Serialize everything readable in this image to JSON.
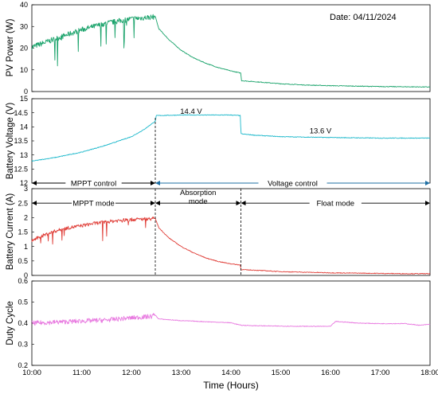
{
  "chart_data": {
    "type": "line",
    "date_label": "Date: 04/11/2024",
    "x_axis": {
      "label": "Time (Hours)",
      "ticks": [
        "10:00",
        "11:00",
        "12:00",
        "13:00",
        "14:00",
        "15:00",
        "16:00",
        "17:00",
        "18:00"
      ],
      "range_hours": [
        10,
        18
      ]
    },
    "panels": [
      {
        "id": "pv-power",
        "ylabel": "PV Power (W)",
        "ylim": [
          0,
          40
        ],
        "yticks": [
          "0",
          "10",
          "20",
          "30",
          "40"
        ],
        "color": "#1aa36b",
        "grid": false,
        "series": {
          "t": [
            10.0,
            10.25,
            10.5,
            10.75,
            11.0,
            11.25,
            11.5,
            11.75,
            12.0,
            12.25,
            12.48,
            12.55,
            12.75,
            13.0,
            13.25,
            13.5,
            13.75,
            14.0,
            14.2,
            14.21,
            14.5,
            15.0,
            15.5,
            16.0,
            16.5,
            17.0,
            17.5,
            18.0
          ],
          "v": [
            20.5,
            22.5,
            24.5,
            26.5,
            28.5,
            30.0,
            31.5,
            32.5,
            33.5,
            34.0,
            34.5,
            29.0,
            24.0,
            19.0,
            15.5,
            13.0,
            11.0,
            9.5,
            8.5,
            5.0,
            4.5,
            3.6,
            3.0,
            2.7,
            2.5,
            2.3,
            2.2,
            2.1
          ]
        },
        "noise_until": 12.47
      },
      {
        "id": "battery-voltage",
        "ylabel": "Battery Voltage (V)",
        "ylim": [
          12,
          15
        ],
        "yticks": [
          "12",
          "12.5",
          "13",
          "13.5",
          "14",
          "14.5",
          "15"
        ],
        "color": "#1fb9cc",
        "grid": false,
        "series": {
          "t": [
            10.0,
            10.5,
            11.0,
            11.5,
            12.0,
            12.25,
            12.48,
            12.5,
            13.0,
            13.5,
            14.0,
            14.19,
            14.2,
            14.5,
            15.0,
            16.0,
            17.0,
            18.0
          ],
          "v": [
            12.78,
            12.92,
            13.1,
            13.35,
            13.65,
            13.9,
            14.2,
            14.4,
            14.42,
            14.42,
            14.42,
            14.4,
            13.75,
            13.7,
            13.65,
            13.62,
            13.6,
            13.6
          ]
        },
        "annotations": [
          {
            "text": "14.4 V",
            "t": 13.2,
            "v": 14.55
          },
          {
            "text": "13.6 V",
            "t": 15.8,
            "v": 13.85
          }
        ],
        "regions": [
          {
            "label": "MPPT control",
            "from": 10.0,
            "to": 12.48
          },
          {
            "label": "Voltage control",
            "from": 12.48,
            "to": 18.0
          }
        ]
      },
      {
        "id": "battery-current",
        "ylabel": "Battery Current (A)",
        "ylim": [
          0,
          3
        ],
        "yticks": [
          "0",
          "0.5",
          "1",
          "1.5",
          "2",
          "2.5",
          "3"
        ],
        "color": "#e0403a",
        "grid": false,
        "series": {
          "t": [
            10.0,
            10.25,
            10.5,
            10.75,
            11.0,
            11.25,
            11.5,
            11.75,
            12.0,
            12.25,
            12.48,
            12.55,
            12.75,
            13.0,
            13.25,
            13.5,
            13.75,
            14.0,
            14.19,
            14.2,
            14.5,
            15.0,
            15.5,
            16.0,
            16.5,
            17.0,
            17.5,
            18.0
          ],
          "v": [
            1.2,
            1.4,
            1.55,
            1.65,
            1.72,
            1.8,
            1.85,
            1.9,
            1.93,
            1.95,
            1.97,
            1.65,
            1.3,
            1.0,
            0.78,
            0.6,
            0.48,
            0.4,
            0.36,
            0.2,
            0.18,
            0.13,
            0.11,
            0.09,
            0.08,
            0.07,
            0.06,
            0.06
          ]
        },
        "noise_until": 12.47,
        "regions": [
          {
            "label": "MPPT mode",
            "from": 10.0,
            "to": 12.48
          },
          {
            "label": "Absorption mode",
            "label_lines": [
              "Absorption",
              "mode"
            ],
            "from": 12.48,
            "to": 14.2
          },
          {
            "label": "Float  mode",
            "from": 14.2,
            "to": 18.0
          }
        ]
      },
      {
        "id": "duty-cycle",
        "ylabel": "Duty Cycle",
        "ylim": [
          0.2,
          0.6
        ],
        "yticks": [
          "0.2",
          "0.3",
          "0.4",
          "0.5",
          "0.6"
        ],
        "color": "#e87ae0",
        "grid": false,
        "series": {
          "t": [
            10.0,
            10.5,
            11.0,
            11.5,
            12.0,
            12.4,
            12.47,
            12.55,
            13.0,
            13.5,
            14.0,
            14.2,
            14.5,
            15.0,
            15.5,
            16.0,
            16.1,
            16.3,
            16.6,
            17.0,
            17.5,
            17.8,
            18.0
          ],
          "v": [
            0.4,
            0.405,
            0.41,
            0.415,
            0.425,
            0.432,
            0.44,
            0.42,
            0.412,
            0.407,
            0.402,
            0.39,
            0.388,
            0.386,
            0.385,
            0.385,
            0.408,
            0.405,
            0.4,
            0.398,
            0.398,
            0.39,
            0.395
          ]
        },
        "noise_until": 12.47
      }
    ]
  }
}
